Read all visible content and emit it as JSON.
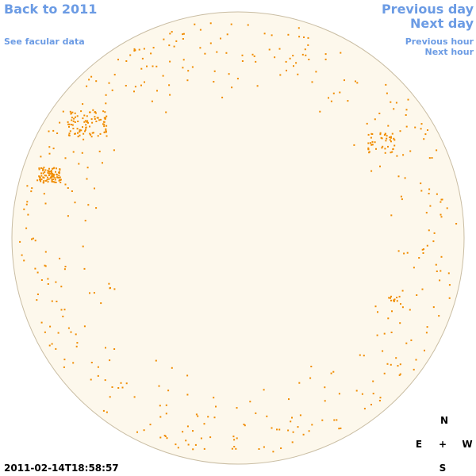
{
  "links": {
    "back": "Back to 2011",
    "facular": "See facular data",
    "previous_day": "Previous day",
    "next_day": "Next day",
    "previous_hour": "Previous hour",
    "next_hour": "Next hour"
  },
  "timestamp": "2011-02-14T18:58:57",
  "compass": {
    "north": "N",
    "east": "E",
    "center": "+",
    "west": "W",
    "south": "S"
  }
}
